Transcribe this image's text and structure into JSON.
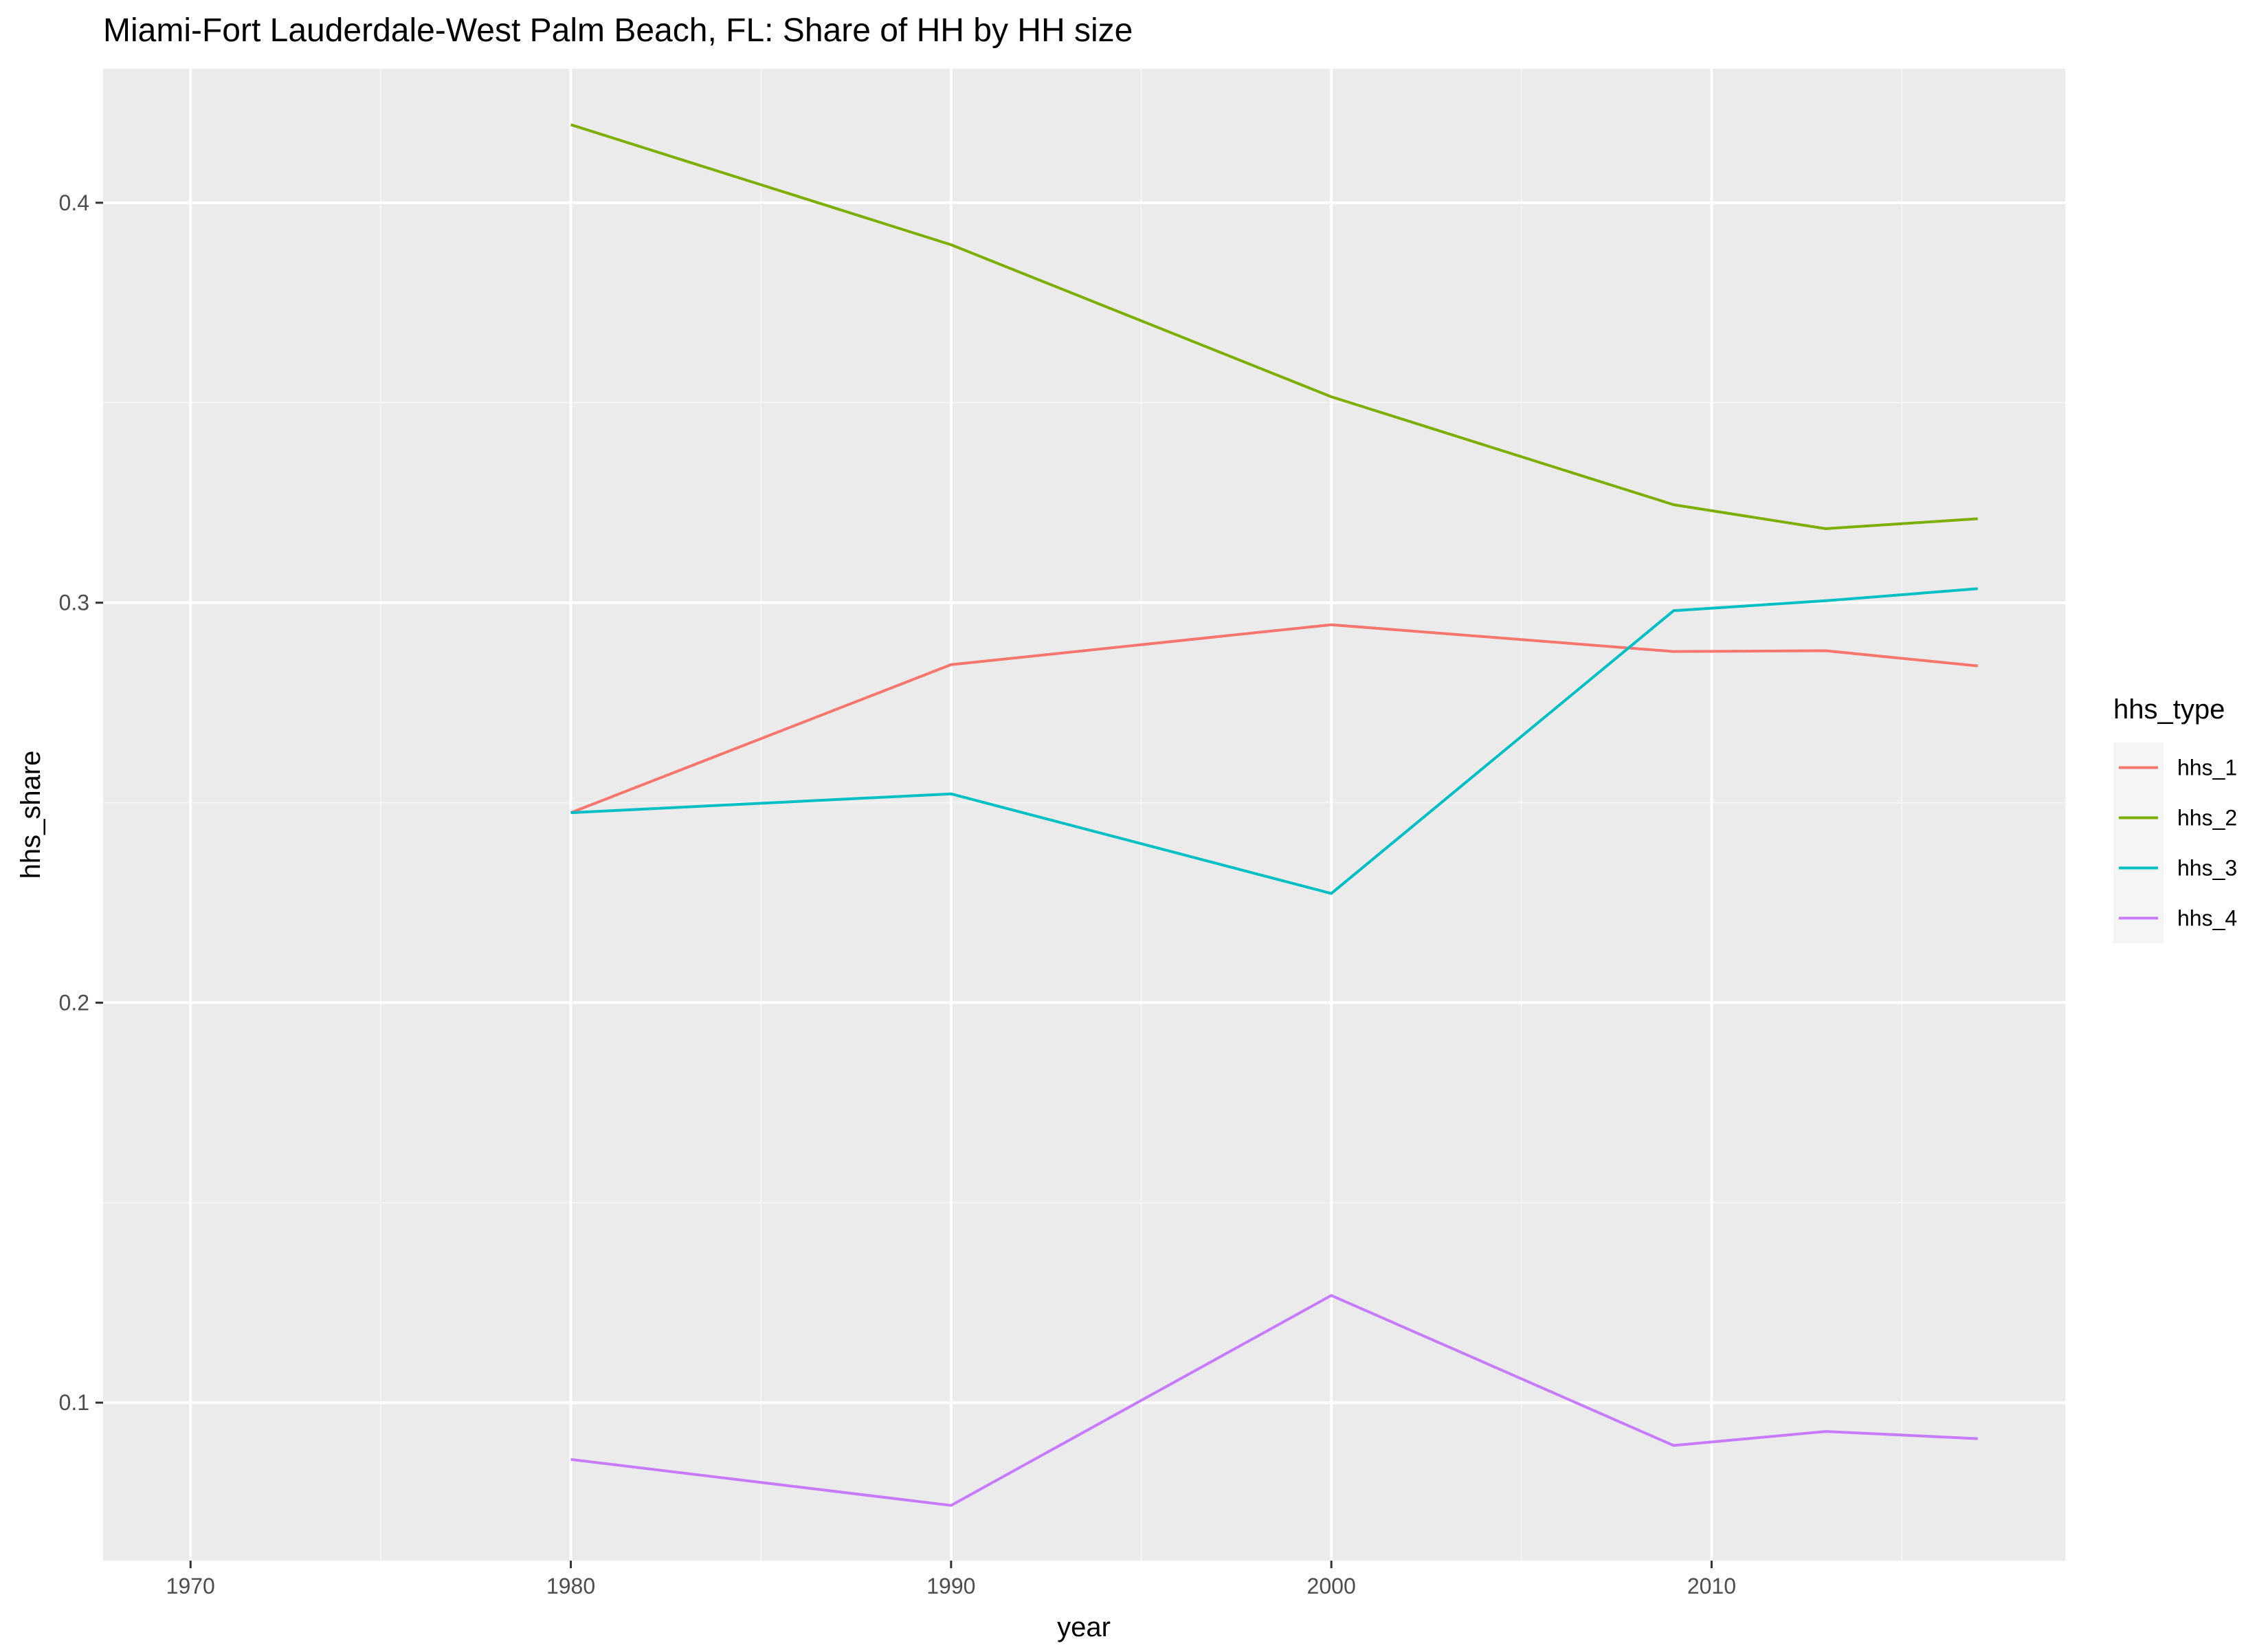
{
  "chart_data": {
    "type": "line",
    "title": "Miami-Fort Lauderdale-West Palm Beach, FL: Share of HH by HH size",
    "xlabel": "year",
    "ylabel": "hhs_share",
    "xlim": [
      1967.7,
      2019.3
    ],
    "ylim": [
      0.0605,
      0.4335
    ],
    "x_major_ticks": [
      1970,
      1980,
      1990,
      2000,
      2010
    ],
    "x_minor_ticks": [
      1975,
      1985,
      1995,
      2005,
      2015
    ],
    "x_tick_labels": [
      "1970",
      "1980",
      "1990",
      "2000",
      "2010"
    ],
    "y_major_ticks": [
      0.1,
      0.2,
      0.3,
      0.4
    ],
    "y_minor_ticks": [
      0.15,
      0.25,
      0.35
    ],
    "y_tick_labels": [
      "0.1",
      "0.2",
      "0.3",
      "0.4"
    ],
    "grid": true,
    "legend": {
      "title": "hhs_type",
      "position": "right"
    },
    "series": [
      {
        "name": "hhs_1",
        "color": "#F8766D",
        "x": [
          1980,
          1990,
          2000,
          2009,
          2013,
          2017
        ],
        "y": [
          0.2475,
          0.2845,
          0.2945,
          0.2878,
          0.288,
          0.2842
        ]
      },
      {
        "name": "hhs_2",
        "color": "#7CAE00",
        "x": [
          1980,
          1990,
          2000,
          2009,
          2013,
          2017
        ],
        "y": [
          0.4195,
          0.3895,
          0.3515,
          0.3245,
          0.3185,
          0.321
        ]
      },
      {
        "name": "hhs_3",
        "color": "#00BFC4",
        "x": [
          1980,
          1990,
          2000,
          2009,
          2013,
          2017
        ],
        "y": [
          0.2475,
          0.2522,
          0.2273,
          0.298,
          0.3005,
          0.3035
        ]
      },
      {
        "name": "hhs_4",
        "color": "#C77CFF",
        "x": [
          1980,
          1990,
          2000,
          2009,
          2013,
          2017
        ],
        "y": [
          0.0858,
          0.0743,
          0.1268,
          0.0893,
          0.0928,
          0.091
        ]
      }
    ]
  },
  "colors": {
    "panel_background": "#EBEBEB",
    "grid_major": "#FFFFFF",
    "grid_minor": "#F5F5F5",
    "tick": "#333333",
    "text": "#000000",
    "tick_text": "#4D4D4D"
  }
}
